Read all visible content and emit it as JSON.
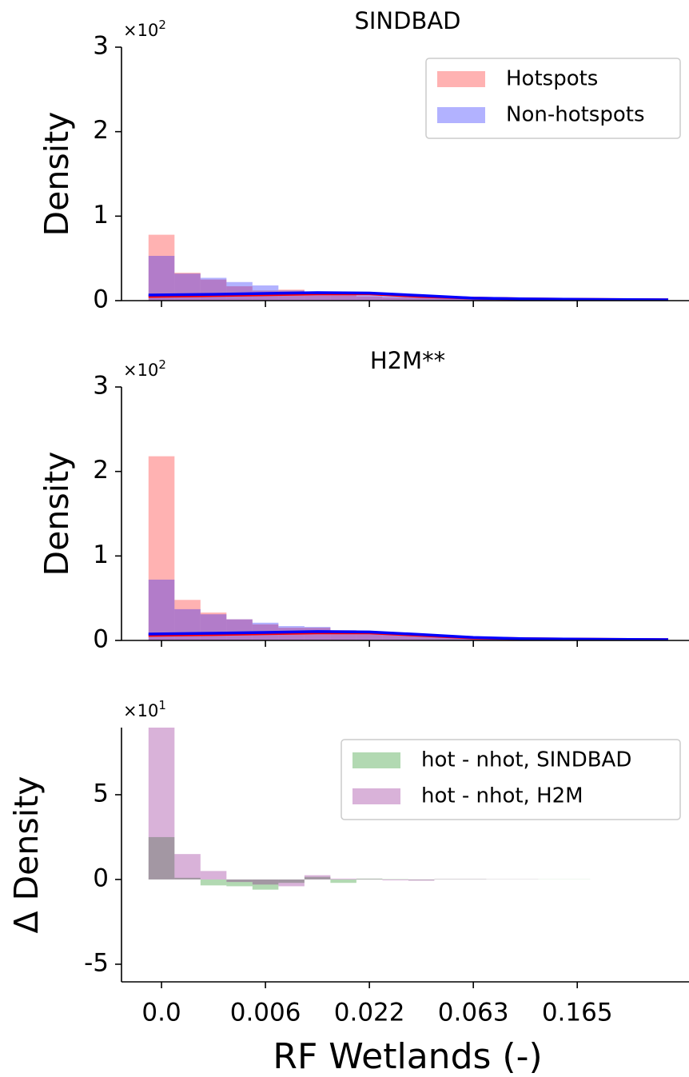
{
  "chart_data": [
    {
      "type": "histogram",
      "title": "SINDBAD",
      "ylabel": "Density",
      "y_offset": {
        "base": "×10",
        "exponent": "2"
      },
      "bins": [
        -0.5,
        0.5,
        1.5,
        2.5,
        3.5,
        4.5,
        5.5,
        6.5,
        7.5,
        8.5,
        9.5,
        10.5,
        11.5,
        12.5,
        13.5,
        14.5,
        15.5,
        16.5,
        17.5,
        18.5,
        19.5
      ],
      "series": [
        {
          "name": "Hotspots",
          "color": "red",
          "values": [
            0.78,
            0.33,
            0.25,
            0.17,
            0.12,
            0.13,
            0.08,
            0.07,
            0.05,
            0.04,
            0.04,
            0.03,
            0.03,
            0.02,
            0.02,
            0.02,
            0.02,
            0.02,
            0.01,
            0.01
          ]
        },
        {
          "name": "Non-hotspots",
          "color": "blue",
          "values": [
            0.53,
            0.32,
            0.27,
            0.22,
            0.18,
            0.12,
            0.09,
            0.08,
            0.07,
            0.06,
            0.05,
            0.04,
            0.03,
            0.03,
            0.02,
            0.02,
            0.02,
            0.02,
            0.01,
            0.01
          ]
        }
      ],
      "lines": [
        {
          "color": "red",
          "x": [
            -0.5,
            2,
            4,
            6,
            8,
            10,
            12,
            14,
            16,
            19.5
          ],
          "values": [
            0.05,
            0.06,
            0.07,
            0.08,
            0.08,
            0.05,
            0.03,
            0.02,
            0.015,
            0.01
          ]
        },
        {
          "color": "blue",
          "x": [
            -0.5,
            2,
            4,
            6,
            8,
            10,
            12,
            14,
            16,
            19.5
          ],
          "values": [
            0.066,
            0.075,
            0.085,
            0.095,
            0.09,
            0.06,
            0.03,
            0.02,
            0.015,
            0.01
          ]
        }
      ],
      "alpha": 0.3,
      "xlim": [
        -1.54,
        20.3
      ],
      "ylim": [
        0,
        3
      ],
      "yticks": [
        0,
        1,
        2,
        3
      ],
      "xticks": [
        0,
        4,
        8,
        12,
        16
      ],
      "xtick_labels": false,
      "legend": "upper right"
    },
    {
      "type": "histogram",
      "title": "H2M**",
      "ylabel": "Density",
      "y_offset": {
        "base": "×10",
        "exponent": "2"
      },
      "bins": [
        -0.5,
        0.5,
        1.5,
        2.5,
        3.5,
        4.5,
        5.5,
        6.5,
        7.5,
        8.5,
        9.5,
        10.5,
        11.5,
        12.5,
        13.5,
        14.5,
        15.5,
        16.5,
        17.5,
        18.5,
        19.5
      ],
      "series": [
        {
          "color": "red",
          "values": [
            2.18,
            0.48,
            0.33,
            0.25,
            0.19,
            0.15,
            0.15,
            0.12,
            0.08,
            0.07,
            0.06,
            0.05,
            0.04,
            0.03,
            0.03,
            0.02,
            0.02,
            0.02,
            0.01,
            0.01
          ]
        },
        {
          "color": "blue",
          "values": [
            0.72,
            0.37,
            0.31,
            0.25,
            0.21,
            0.17,
            0.16,
            0.12,
            0.09,
            0.07,
            0.06,
            0.05,
            0.04,
            0.03,
            0.03,
            0.02,
            0.02,
            0.02,
            0.01,
            0.01
          ]
        }
      ],
      "lines": [
        {
          "color": "red",
          "x": [
            -0.5,
            2,
            4,
            6,
            8,
            10,
            12,
            14,
            16,
            19.5
          ],
          "values": [
            0.06,
            0.07,
            0.08,
            0.09,
            0.09,
            0.06,
            0.03,
            0.02,
            0.015,
            0.01
          ]
        },
        {
          "color": "blue",
          "x": [
            -0.5,
            2,
            4,
            6,
            8,
            10,
            12,
            14,
            16,
            19.5
          ],
          "values": [
            0.076,
            0.085,
            0.095,
            0.105,
            0.1,
            0.07,
            0.035,
            0.02,
            0.015,
            0.01
          ]
        }
      ],
      "alpha": 0.3,
      "xlim": [
        -1.54,
        20.3
      ],
      "ylim": [
        0,
        3
      ],
      "yticks": [
        0,
        1,
        2,
        3
      ],
      "xticks": [
        0,
        4,
        8,
        12,
        16
      ],
      "xtick_labels": false
    },
    {
      "type": "histogram",
      "ylabel": "Δ Density",
      "xlabel": "RF Wetlands (-)",
      "y_offset": {
        "base": "×10",
        "exponent": "1"
      },
      "bins": [
        -0.5,
        0.5,
        1.5,
        2.5,
        3.5,
        4.5,
        5.5,
        6.5,
        7.5,
        8.5,
        9.5,
        10.5,
        11.5,
        12.5,
        13.5,
        14.5,
        15.5,
        16.5,
        17.5,
        18.5,
        19.5
      ],
      "series": [
        {
          "name": "hot - nhot, SINDBAD",
          "color": "green",
          "values": [
            2.5,
            0.1,
            -0.35,
            -0.4,
            -0.6,
            -0.2,
            0.15,
            -0.2,
            0.05,
            0.02,
            -0.03,
            0.02,
            0.02,
            0.01,
            0.01,
            0.01,
            0.01,
            0.0,
            0.0,
            0.0
          ]
        },
        {
          "name": "hot - nhot, H2M",
          "color": "purple",
          "values": [
            9.5,
            1.5,
            0.5,
            -0.15,
            -0.3,
            -0.4,
            0.25,
            0.05,
            0.03,
            -0.05,
            -0.07,
            0.02,
            0.02,
            0.01,
            0.01,
            0.0,
            0.0,
            0.0,
            0.0,
            0.0
          ]
        }
      ],
      "alpha": 0.3,
      "xlim": [
        -1.54,
        20.3
      ],
      "ylim": [
        -6.04,
        8.96
      ],
      "yticks": [
        -5,
        0,
        5
      ],
      "xticks": [
        {
          "value": 0,
          "label": "0.0"
        },
        {
          "value": 4,
          "label": "0.006"
        },
        {
          "value": 8,
          "label": "0.022"
        },
        {
          "value": 12,
          "label": "0.063"
        },
        {
          "value": 16,
          "label": "0.165"
        }
      ],
      "xtick_labels": true,
      "legend": "upper right"
    }
  ]
}
